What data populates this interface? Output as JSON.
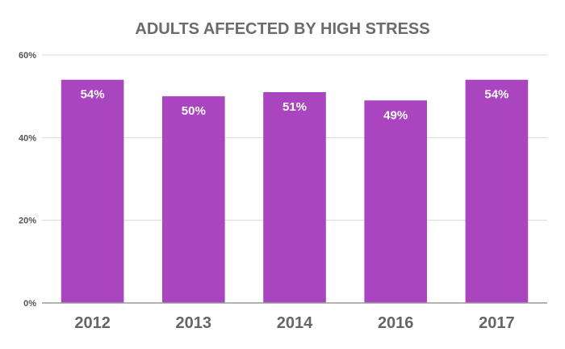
{
  "chart_data": {
    "type": "bar",
    "title": "ADULTS AFFECTED BY HIGH STRESS",
    "xlabel": "",
    "ylabel": "",
    "categories": [
      "2012",
      "2013",
      "2014",
      "2016",
      "2017"
    ],
    "values": [
      54,
      50,
      51,
      49,
      54
    ],
    "data_labels": [
      "54%",
      "50%",
      "51%",
      "49%",
      "54%"
    ],
    "ylim": [
      0,
      60
    ],
    "yticks": [
      0,
      20,
      40,
      60
    ],
    "ytick_labels": [
      "0%",
      "20%",
      "40%",
      "60%"
    ],
    "grid": true,
    "legend": "none",
    "bar_color": "#a845bf"
  }
}
